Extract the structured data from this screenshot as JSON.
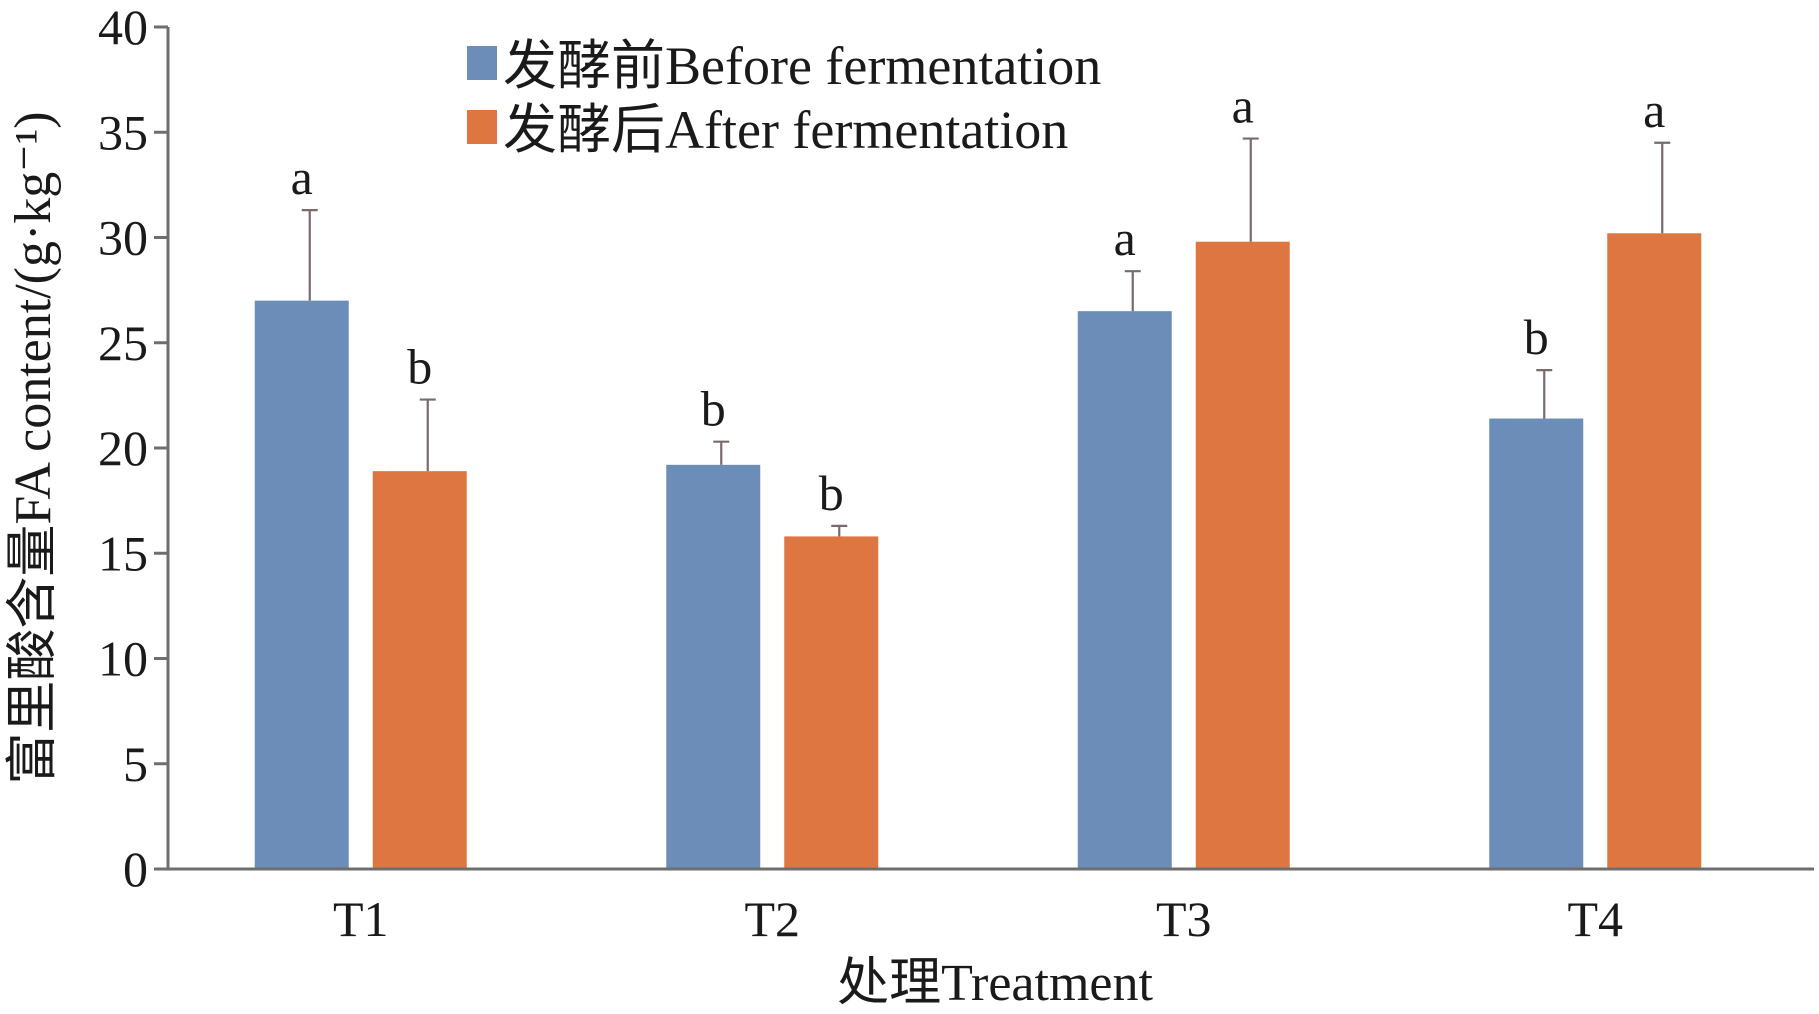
{
  "chart_data": {
    "type": "bar",
    "xlabel": "处理Treatment",
    "ylabel": "富里酸含量FA content/(g·kg⁻¹)",
    "ylim": [
      0,
      40
    ],
    "yticks": [
      "0",
      "5",
      "10",
      "15",
      "20",
      "25",
      "30",
      "35",
      "40"
    ],
    "categories": [
      "T1",
      "T2",
      "T3",
      "T4"
    ],
    "legend_position": "top-center",
    "series": [
      {
        "name": "发酵前Before fermentation",
        "color": "#6b8db7",
        "values": [
          27.0,
          19.2,
          26.5,
          21.4
        ],
        "errors": [
          4.3,
          1.1,
          1.9,
          2.3
        ],
        "significance": [
          "a",
          "b",
          "a",
          "b"
        ]
      },
      {
        "name": "发酵后After fermentation",
        "color": "#de7641",
        "values": [
          18.9,
          15.8,
          29.8,
          30.2
        ],
        "errors": [
          3.4,
          0.5,
          4.9,
          4.3
        ],
        "significance": [
          "b",
          "b",
          "a",
          "a"
        ]
      }
    ]
  }
}
